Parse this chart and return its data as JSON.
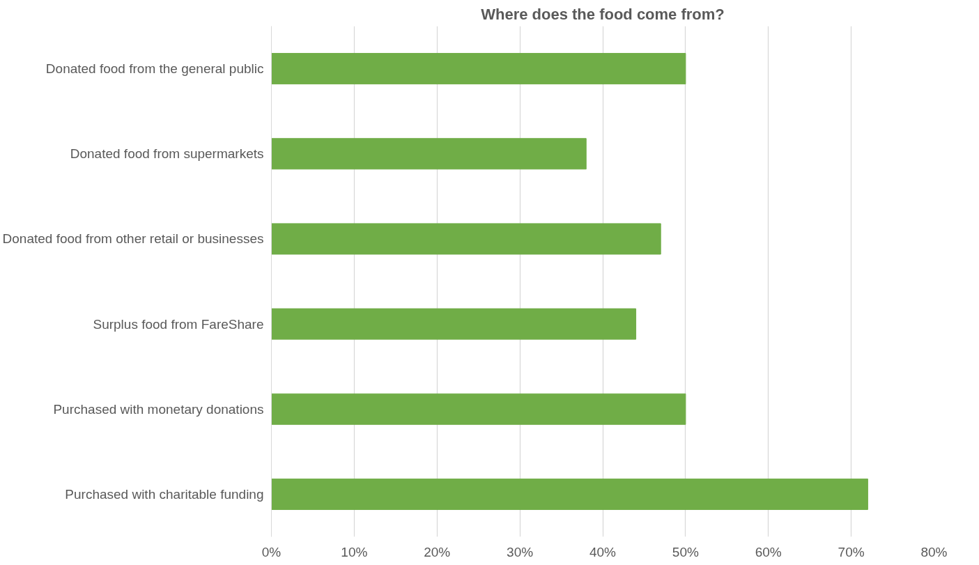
{
  "chart_data": {
    "type": "bar",
    "orientation": "horizontal",
    "title": "Where does the food come from?",
    "categories": [
      "Donated food from the general public",
      "Donated food from supermarkets",
      "Donated food from other retail or businesses",
      "Surplus food from FareShare",
      "Purchased with monetary donations",
      "Purchased with charitable funding"
    ],
    "values": [
      50,
      38,
      47,
      44,
      50,
      72
    ],
    "color": "#70ad47",
    "xlim": [
      0,
      80
    ],
    "xticks": [
      {
        "value": 0,
        "label": "0%"
      },
      {
        "value": 10,
        "label": "10%"
      },
      {
        "value": 20,
        "label": "20%"
      },
      {
        "value": 30,
        "label": "30%"
      },
      {
        "value": 40,
        "label": "40%"
      },
      {
        "value": 50,
        "label": "50%"
      },
      {
        "value": 60,
        "label": "60%"
      },
      {
        "value": 70,
        "label": "70%"
      },
      {
        "value": 80,
        "label": "80%"
      }
    ],
    "grid": "x"
  }
}
